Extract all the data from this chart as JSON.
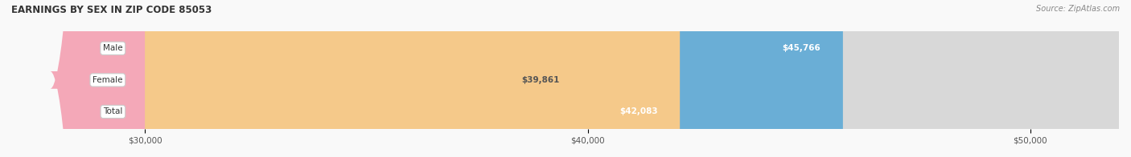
{
  "title": "EARNINGS BY SEX IN ZIP CODE 85053",
  "source": "Source: ZipAtlas.com",
  "categories": [
    "Male",
    "Female",
    "Total"
  ],
  "values": [
    45766,
    39861,
    42083
  ],
  "bar_colors": [
    "#6aaed6",
    "#f4a8b8",
    "#f5c98a"
  ],
  "bar_bg_color": "#e0e0e0",
  "label_colors": [
    "#ffffff",
    "#555555",
    "#ffffff"
  ],
  "xmin": 30000,
  "xmax": 52000,
  "xticks": [
    30000,
    40000,
    50000
  ],
  "xtick_labels": [
    "$30,000",
    "$40,000",
    "$50,000"
  ],
  "value_labels": [
    "$45,766",
    "$39,861",
    "$42,083"
  ],
  "figsize": [
    14.06,
    1.96
  ],
  "dpi": 100
}
